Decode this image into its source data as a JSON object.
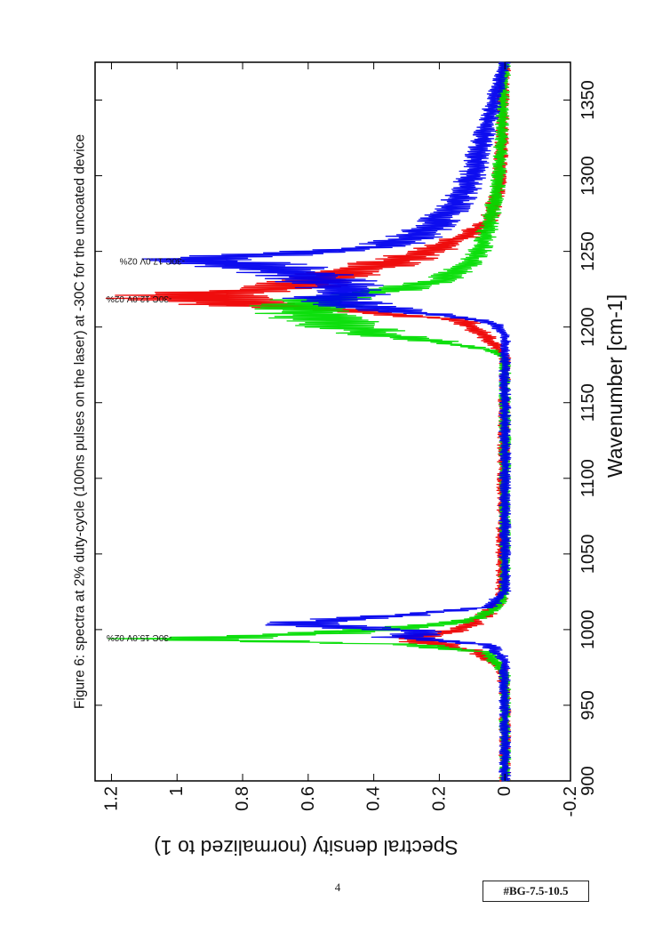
{
  "page": {
    "page_number": "4",
    "document_id": "#BG-7.5-10.5"
  },
  "chart_data": {
    "type": "line",
    "title": "Figure 6: spectra at 2% duty-cycle (100ns pulses on the laser) at -30C for the uncoated device",
    "xlabel": "Wavenumber [cm-1]",
    "ylabel": "Spectral density (normalized to 1)",
    "xlim": [
      900,
      1375
    ],
    "ylim": [
      -0.2,
      1.25
    ],
    "x_ticks": [
      900,
      950,
      1000,
      1050,
      1100,
      1150,
      1200,
      1250,
      1300,
      1350
    ],
    "y_ticks": [
      -0.2,
      0,
      0.2,
      0.4,
      0.6,
      0.8,
      1,
      1.2
    ],
    "x_tick_labels": [
      "900",
      "950",
      "1000",
      "1050",
      "1100",
      "1150",
      "1200",
      "1250",
      "1300",
      "1350"
    ],
    "y_tick_labels": [
      "-0.2",
      "0",
      "0.2",
      "0.4",
      "0.6",
      "0.8",
      "1",
      "1.2"
    ],
    "grid": false,
    "orientation": "rotated 90 degrees counter-clockwise",
    "series": [
      {
        "color": "#ee0000",
        "x": [
          900,
          960,
          975,
          985,
          990,
          995,
          998,
          1002,
          1006,
          1010,
          1020,
          1180,
          1188,
          1195,
          1200,
          1205,
          1210,
          1215,
          1219,
          1223,
          1226,
          1230,
          1235,
          1240,
          1245,
          1250,
          1255,
          1260,
          1270,
          1290,
          1320,
          1375
        ],
        "y": [
          0.0,
          0.0,
          0.01,
          0.08,
          0.2,
          0.3,
          0.17,
          0.12,
          0.1,
          0.06,
          0.01,
          0.0,
          0.03,
          0.07,
          0.1,
          0.15,
          0.42,
          0.8,
          1.0,
          0.85,
          0.66,
          0.58,
          0.5,
          0.4,
          0.31,
          0.24,
          0.18,
          0.12,
          0.05,
          0.02,
          0.01,
          0.0
        ]
      },
      {
        "color": "#00dd00",
        "x": [
          900,
          970,
          985,
          990,
          994,
          997,
          1000,
          1004,
          1008,
          1015,
          1025,
          1180,
          1185,
          1190,
          1195,
          1200,
          1205,
          1210,
          1214,
          1218,
          1222,
          1226,
          1232,
          1240,
          1250,
          1260,
          1275,
          1295,
          1330,
          1375
        ],
        "y": [
          0.0,
          0.0,
          0.05,
          0.3,
          1.0,
          0.6,
          0.38,
          0.18,
          0.08,
          0.02,
          0.0,
          0.0,
          0.05,
          0.2,
          0.38,
          0.48,
          0.55,
          0.6,
          0.62,
          0.55,
          0.45,
          0.3,
          0.18,
          0.12,
          0.08,
          0.06,
          0.04,
          0.02,
          0.01,
          0.0
        ]
      },
      {
        "color": "#0000ee",
        "x": [
          900,
          980,
          990,
          995,
          999,
          1003,
          1006,
          1010,
          1015,
          1025,
          1195,
          1202,
          1207,
          1211,
          1215,
          1219,
          1223,
          1227,
          1231,
          1235,
          1239,
          1242,
          1244,
          1247,
          1250,
          1254,
          1258,
          1262,
          1270,
          1285,
          1300,
          1315,
          1330,
          1345,
          1375
        ],
        "y": [
          0.0,
          0.0,
          0.05,
          0.33,
          0.24,
          0.64,
          0.52,
          0.3,
          0.05,
          0.0,
          0.0,
          0.03,
          0.15,
          0.35,
          0.48,
          0.52,
          0.48,
          0.5,
          0.55,
          0.62,
          0.7,
          0.82,
          0.96,
          0.85,
          0.55,
          0.35,
          0.3,
          0.26,
          0.2,
          0.14,
          0.1,
          0.08,
          0.06,
          0.04,
          0.0
        ]
      }
    ],
    "annotations": [
      {
        "text": "-30C 15.0V 02%",
        "x": 995,
        "y": 1.0
      },
      {
        "text": "-30C 12.0V 02%",
        "x": 1219,
        "y": 1.0
      },
      {
        "text": "-30C 17.0V 02%",
        "x": 1244,
        "y": 0.96
      }
    ]
  }
}
